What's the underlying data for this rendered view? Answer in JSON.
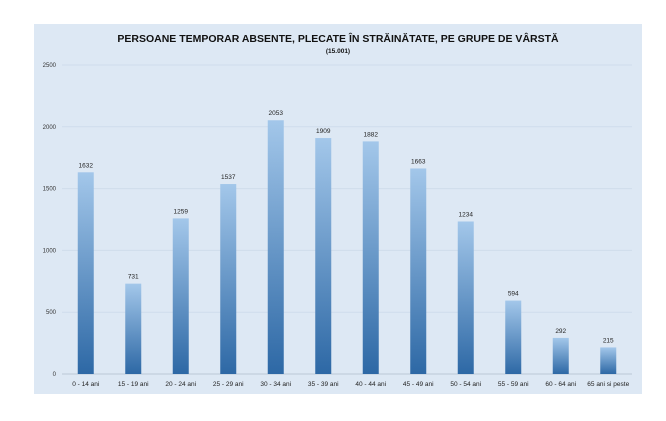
{
  "chart_data": {
    "type": "bar",
    "title": "PERSOANE TEMPORAR ABSENTE, PLECATE ÎN STRĂINĂTATE, PE GRUPE DE VÂRSTĂ",
    "subtitle": "(15.001)",
    "xlabel": "",
    "ylabel": "",
    "ylim": [
      0,
      2500
    ],
    "yticks": [
      0,
      500,
      1000,
      1500,
      2000,
      2500
    ],
    "grid": true,
    "categories": [
      "0 - 14 ani",
      "15 - 19 ani",
      "20 - 24 ani",
      "25 - 29 ani",
      "30 - 34 ani",
      "35 - 39 ani",
      "40 - 44 ani",
      "45 - 49 ani",
      "50 - 54 ani",
      "55 - 59 ani",
      "60 - 64 ani",
      "65 ani si peste"
    ],
    "values": [
      1632,
      731,
      1259,
      1537,
      2053,
      1909,
      1882,
      1663,
      1234,
      594,
      292,
      215
    ],
    "colors": {
      "bar_top": "#a3c7ea",
      "bar_bottom": "#2d68a5",
      "background": "#dde8f4",
      "grid": "#cfdceb"
    }
  }
}
